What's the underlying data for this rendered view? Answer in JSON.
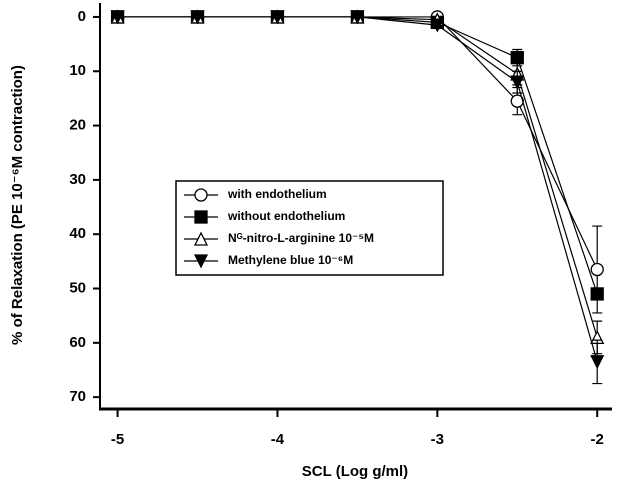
{
  "chart_data": {
    "type": "line",
    "x_label": "SCL (Log g/ml)",
    "y_label": "% of Relaxation (PE 10⁻⁶M contraction)",
    "x": [
      -5,
      -4.5,
      -4,
      -3.5,
      -3,
      -2.5,
      -2
    ],
    "series": [
      {
        "name": "with endothelium",
        "color": "#000000",
        "marker": "circle-open",
        "values": [
          0,
          0,
          0,
          0,
          0,
          15.5,
          46.5
        ],
        "errors": [
          null,
          null,
          null,
          null,
          null,
          2.5,
          8
        ]
      },
      {
        "name": "without endothelium",
        "color": "#000000",
        "marker": "square-filled",
        "values": [
          0,
          0,
          0,
          0,
          1,
          7.5,
          51
        ],
        "errors": [
          null,
          null,
          null,
          null,
          null,
          1.5,
          null
        ]
      },
      {
        "name": "Nᴳ-nitro-L-arginine 10⁻⁵M",
        "color": "#000000",
        "marker": "triangle-up-open",
        "values": [
          0,
          0,
          0,
          0,
          0.5,
          10.5,
          59
        ],
        "errors": [
          null,
          null,
          null,
          null,
          null,
          2,
          3
        ]
      },
      {
        "name": "Methylene blue 10⁻⁶M",
        "color": "#000000",
        "marker": "triangle-down-filled",
        "values": [
          0,
          0,
          0,
          0,
          1.5,
          12,
          63.5
        ],
        "errors": [
          null,
          null,
          null,
          null,
          null,
          2,
          4
        ]
      }
    ],
    "xlim": [
      -5.11,
      -1.92
    ],
    "xticks": [
      -5,
      -4,
      -3,
      -2
    ],
    "ylim": [
      -2.2,
      72
    ],
    "yticks": [
      0,
      10,
      20,
      30,
      40,
      50,
      60,
      70
    ],
    "y_inverted": true,
    "legend": "center-left",
    "grid": false
  }
}
